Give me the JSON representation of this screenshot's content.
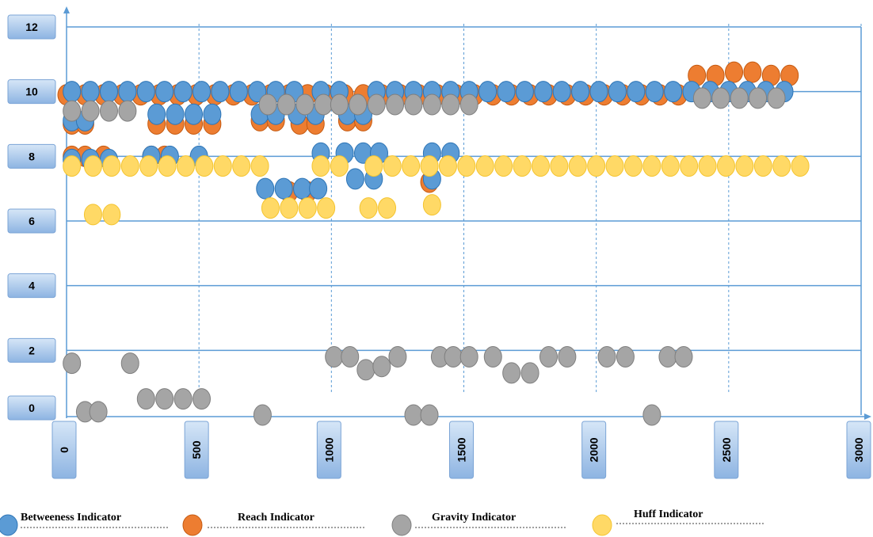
{
  "chart_data": {
    "type": "scatter",
    "xlim": [
      0,
      3000
    ],
    "ylim": [
      0,
      12
    ],
    "x_ticks": [
      "0",
      "500",
      "1000",
      "1500",
      "2000",
      "2500",
      "3000"
    ],
    "y_ticks": [
      "0",
      "2",
      "4",
      "6",
      "8",
      "10",
      "12"
    ],
    "grid": "horizontal solid, vertical dashed",
    "legend_position": "bottom",
    "series": [
      {
        "name": "Reach Indicator",
        "color": "#ED7D31",
        "points": [
          [
            0,
            9.9
          ],
          [
            70,
            9.9
          ],
          [
            140,
            9.9
          ],
          [
            210,
            9.9
          ],
          [
            280,
            9.9
          ],
          [
            350,
            9.9
          ],
          [
            420,
            9.9
          ],
          [
            490,
            9.9
          ],
          [
            560,
            9.9
          ],
          [
            630,
            9.9
          ],
          [
            700,
            9.9
          ],
          [
            770,
            9.9
          ],
          [
            840,
            9.9
          ],
          [
            910,
            9.9
          ],
          [
            980,
            9.9
          ],
          [
            1050,
            9.9
          ],
          [
            1120,
            9.9
          ],
          [
            1190,
            9.9
          ],
          [
            1260,
            9.9
          ],
          [
            1330,
            9.9
          ],
          [
            1400,
            9.9
          ],
          [
            1470,
            9.9
          ],
          [
            1540,
            9.9
          ],
          [
            1610,
            9.9
          ],
          [
            1680,
            9.9
          ],
          [
            1750,
            9.9
          ],
          [
            1820,
            9.9
          ],
          [
            1890,
            9.9
          ],
          [
            1960,
            9.9
          ],
          [
            2030,
            9.9
          ],
          [
            2100,
            9.9
          ],
          [
            2170,
            9.9
          ],
          [
            2240,
            9.9
          ],
          [
            2310,
            9.9
          ],
          [
            2380,
            10.5
          ],
          [
            2450,
            10.5
          ],
          [
            2520,
            10.6
          ],
          [
            2590,
            10.6
          ],
          [
            2660,
            10.5
          ],
          [
            2730,
            10.5
          ],
          [
            20,
            9.0
          ],
          [
            70,
            9.0
          ],
          [
            340,
            9.0
          ],
          [
            410,
            9.0
          ],
          [
            480,
            9.0
          ],
          [
            550,
            9.0
          ],
          [
            730,
            9.1
          ],
          [
            790,
            9.1
          ],
          [
            880,
            9.0
          ],
          [
            940,
            9.0
          ],
          [
            1060,
            9.1
          ],
          [
            1120,
            9.1
          ],
          [
            20,
            8.0
          ],
          [
            70,
            8.0
          ],
          [
            140,
            8.0
          ],
          [
            320,
            8.0
          ],
          [
            370,
            8.0
          ],
          [
            840,
            6.9
          ],
          [
            910,
            6.9
          ],
          [
            1370,
            7.2
          ]
        ]
      },
      {
        "name": "Betweeness Indicator",
        "color": "#5B9BD5",
        "points": [
          [
            20,
            10.0
          ],
          [
            90,
            10.0
          ],
          [
            160,
            10.0
          ],
          [
            230,
            10.0
          ],
          [
            300,
            10.0
          ],
          [
            370,
            10.0
          ],
          [
            440,
            10.0
          ],
          [
            510,
            10.0
          ],
          [
            580,
            10.0
          ],
          [
            650,
            10.0
          ],
          [
            720,
            10.0
          ],
          [
            790,
            10.0
          ],
          [
            860,
            10.0
          ],
          [
            960,
            10.0
          ],
          [
            1030,
            10.0
          ],
          [
            1170,
            10.0
          ],
          [
            1240,
            10.0
          ],
          [
            1310,
            10.0
          ],
          [
            1380,
            10.0
          ],
          [
            1450,
            10.0
          ],
          [
            1520,
            10.0
          ],
          [
            1590,
            10.0
          ],
          [
            1660,
            10.0
          ],
          [
            1730,
            10.0
          ],
          [
            1800,
            10.0
          ],
          [
            1870,
            10.0
          ],
          [
            1940,
            10.0
          ],
          [
            2010,
            10.0
          ],
          [
            2080,
            10.0
          ],
          [
            2150,
            10.0
          ],
          [
            2220,
            10.0
          ],
          [
            2290,
            10.0
          ],
          [
            2360,
            10.0
          ],
          [
            2430,
            10.0
          ],
          [
            2500,
            10.0
          ],
          [
            2570,
            10.0
          ],
          [
            2640,
            10.0
          ],
          [
            2710,
            10.0
          ],
          [
            20,
            9.1
          ],
          [
            70,
            9.1
          ],
          [
            340,
            9.3
          ],
          [
            410,
            9.3
          ],
          [
            480,
            9.3
          ],
          [
            550,
            9.3
          ],
          [
            730,
            9.3
          ],
          [
            790,
            9.3
          ],
          [
            870,
            9.3
          ],
          [
            940,
            9.3
          ],
          [
            1060,
            9.3
          ],
          [
            1120,
            9.3
          ],
          [
            20,
            7.9
          ],
          [
            90,
            7.9
          ],
          [
            160,
            7.9
          ],
          [
            320,
            8.0
          ],
          [
            390,
            8.0
          ],
          [
            500,
            8.0
          ],
          [
            960,
            8.1
          ],
          [
            1050,
            8.1
          ],
          [
            1120,
            8.1
          ],
          [
            1180,
            8.1
          ],
          [
            1380,
            8.1
          ],
          [
            1450,
            8.1
          ],
          [
            750,
            7.0
          ],
          [
            820,
            7.0
          ],
          [
            890,
            7.0
          ],
          [
            950,
            7.0
          ],
          [
            1090,
            7.3
          ],
          [
            1160,
            7.3
          ],
          [
            1380,
            7.3
          ]
        ]
      },
      {
        "name": "Gravity Indicator",
        "color": "#A5A5A5",
        "points": [
          [
            20,
            9.4
          ],
          [
            90,
            9.4
          ],
          [
            160,
            9.4
          ],
          [
            230,
            9.4
          ],
          [
            760,
            9.6
          ],
          [
            830,
            9.6
          ],
          [
            900,
            9.6
          ],
          [
            970,
            9.6
          ],
          [
            1030,
            9.6
          ],
          [
            1100,
            9.6
          ],
          [
            1170,
            9.6
          ],
          [
            1240,
            9.6
          ],
          [
            1310,
            9.6
          ],
          [
            1380,
            9.6
          ],
          [
            1450,
            9.6
          ],
          [
            1520,
            9.6
          ],
          [
            2400,
            9.8
          ],
          [
            2470,
            9.8
          ],
          [
            2540,
            9.8
          ],
          [
            2610,
            9.8
          ],
          [
            2680,
            9.8
          ],
          [
            20,
            1.6
          ],
          [
            240,
            1.6
          ],
          [
            70,
            0.1
          ],
          [
            120,
            0.1
          ],
          [
            300,
            0.5
          ],
          [
            370,
            0.5
          ],
          [
            440,
            0.5
          ],
          [
            510,
            0.5
          ],
          [
            740,
            0
          ],
          [
            1010,
            1.8
          ],
          [
            1070,
            1.8
          ],
          [
            1130,
            1.4
          ],
          [
            1190,
            1.5
          ],
          [
            1250,
            1.8
          ],
          [
            1310,
            0
          ],
          [
            1370,
            0
          ],
          [
            1410,
            1.8
          ],
          [
            1460,
            1.8
          ],
          [
            1520,
            1.8
          ],
          [
            1610,
            1.8
          ],
          [
            1680,
            1.3
          ],
          [
            1750,
            1.3
          ],
          [
            1820,
            1.8
          ],
          [
            1890,
            1.8
          ],
          [
            2040,
            1.8
          ],
          [
            2110,
            1.8
          ],
          [
            2210,
            0
          ],
          [
            2270,
            1.8
          ],
          [
            2330,
            1.8
          ]
        ]
      },
      {
        "name": "Huff Indicator",
        "color": "#FFD966",
        "points": [
          [
            20,
            7.7
          ],
          [
            100,
            7.7
          ],
          [
            170,
            7.7
          ],
          [
            240,
            7.7
          ],
          [
            310,
            7.7
          ],
          [
            380,
            7.7
          ],
          [
            450,
            7.7
          ],
          [
            520,
            7.7
          ],
          [
            590,
            7.7
          ],
          [
            660,
            7.7
          ],
          [
            730,
            7.7
          ],
          [
            960,
            7.7
          ],
          [
            1030,
            7.7
          ],
          [
            1160,
            7.7
          ],
          [
            1230,
            7.7
          ],
          [
            1300,
            7.7
          ],
          [
            1370,
            7.7
          ],
          [
            1440,
            7.7
          ],
          [
            1510,
            7.7
          ],
          [
            1580,
            7.7
          ],
          [
            1650,
            7.7
          ],
          [
            1720,
            7.7
          ],
          [
            1790,
            7.7
          ],
          [
            1860,
            7.7
          ],
          [
            1930,
            7.7
          ],
          [
            2000,
            7.7
          ],
          [
            2070,
            7.7
          ],
          [
            2140,
            7.7
          ],
          [
            2210,
            7.7
          ],
          [
            2280,
            7.7
          ],
          [
            2350,
            7.7
          ],
          [
            2420,
            7.7
          ],
          [
            2490,
            7.7
          ],
          [
            2560,
            7.7
          ],
          [
            2630,
            7.7
          ],
          [
            2700,
            7.7
          ],
          [
            2770,
            7.7
          ],
          [
            100,
            6.2
          ],
          [
            170,
            6.2
          ],
          [
            770,
            6.4
          ],
          [
            840,
            6.4
          ],
          [
            910,
            6.4
          ],
          [
            980,
            6.4
          ],
          [
            1140,
            6.4
          ],
          [
            1210,
            6.4
          ],
          [
            1380,
            6.5
          ]
        ]
      }
    ],
    "legend": [
      {
        "label": "Betweeness Indicator",
        "color": "#5B9BD5"
      },
      {
        "label": "Reach Indicator",
        "color": "#ED7D31"
      },
      {
        "label": "Gravity Indicator",
        "color": "#A5A5A5"
      },
      {
        "label": "Huff  Indicator",
        "color": "#FFD966"
      }
    ]
  }
}
